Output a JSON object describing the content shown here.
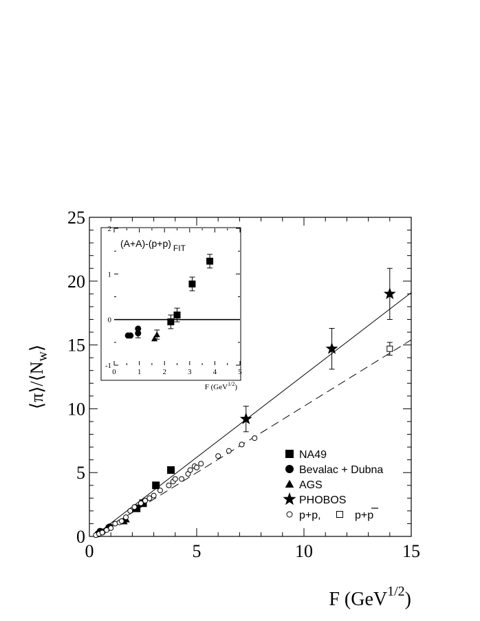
{
  "chart_data": {
    "type": "scatter",
    "xlabel": "F (GeV",
    "xlabel_sup": "1/2",
    "xlabel_close": ")",
    "ylabel": "⟨π⟩/⟨N",
    "ylabel_sub": "w",
    "ylabel_close": "⟩",
    "xlim": [
      0,
      15
    ],
    "ylim": [
      0,
      25
    ],
    "xticks": [
      "0",
      "5",
      "10",
      "15"
    ],
    "yticks": [
      "0",
      "5",
      "10",
      "15",
      "20",
      "25"
    ],
    "series": [
      {
        "name": "NA49",
        "marker": "square-filled",
        "points": [
          [
            2.2,
            2.2
          ],
          [
            2.5,
            2.6
          ],
          [
            3.1,
            4.0
          ],
          [
            3.8,
            5.2
          ]
        ]
      },
      {
        "name": "Bevalac + Dubna",
        "marker": "circle-filled",
        "points": [
          [
            0.4,
            0.2
          ],
          [
            0.5,
            0.4
          ],
          [
            0.6,
            0.35
          ],
          [
            0.9,
            0.7
          ],
          [
            0.95,
            0.75
          ]
        ]
      },
      {
        "name": "AGS",
        "marker": "triangle-filled",
        "points": [
          [
            1.6,
            1.2
          ],
          [
            1.7,
            1.35
          ]
        ]
      },
      {
        "name": "PHOBOS",
        "marker": "star",
        "points": [
          [
            7.3,
            9.2,
            1.0
          ],
          [
            11.3,
            14.7,
            1.6
          ],
          [
            14.0,
            19.0,
            2.0
          ]
        ]
      },
      {
        "name": "p+p,",
        "marker": "circle-open",
        "points": [
          [
            0.3,
            0.1
          ],
          [
            0.45,
            0.2
          ],
          [
            0.6,
            0.3
          ],
          [
            0.8,
            0.5
          ],
          [
            1.0,
            0.65
          ],
          [
            1.2,
            1.0
          ],
          [
            1.4,
            1.1
          ],
          [
            1.5,
            1.2
          ],
          [
            1.7,
            1.5
          ],
          [
            1.9,
            2.0
          ],
          [
            2.1,
            2.3
          ],
          [
            2.4,
            2.6
          ],
          [
            2.6,
            2.8
          ],
          [
            2.8,
            3.0
          ],
          [
            3.0,
            3.2
          ],
          [
            3.3,
            3.6
          ],
          [
            3.7,
            4.0
          ],
          [
            3.9,
            4.3
          ],
          [
            4.0,
            4.5
          ],
          [
            4.3,
            4.5
          ],
          [
            4.6,
            4.9
          ],
          [
            4.7,
            5.2
          ],
          [
            4.9,
            5.5
          ],
          [
            5.0,
            5.4
          ],
          [
            5.2,
            5.7
          ],
          [
            6.0,
            6.3
          ],
          [
            6.5,
            6.7
          ],
          [
            7.1,
            7.2
          ],
          [
            7.7,
            7.7
          ]
        ]
      },
      {
        "name": "p+p",
        "marker": "square-open",
        "overbar": true,
        "points": [
          [
            14.0,
            14.7,
            0.5
          ]
        ]
      }
    ],
    "fit_lines": [
      {
        "style": "solid",
        "from": [
          0.2,
          0.0
        ],
        "to": [
          15.0,
          19.1
        ]
      },
      {
        "style": "dashed",
        "from": [
          0.2,
          0.0
        ],
        "to": [
          15.0,
          15.4
        ]
      }
    ],
    "legend_placement": "bottom-right",
    "inset": {
      "title": "(A+A)-(p+p)",
      "title_sub": "FIT",
      "xlabel": "F (GeV",
      "xlabel_sup": "1/2",
      "xlabel_close": ")",
      "xlim": [
        0,
        5
      ],
      "ylim": [
        -1,
        2
      ],
      "xticks": [
        "0",
        "1",
        "2",
        "3",
        "4",
        "5"
      ],
      "yticks": [
        "-1",
        "0",
        "1",
        "2"
      ],
      "zero_line": true,
      "points": [
        {
          "marker": "circle-filled",
          "x": 0.55,
          "y": -0.35
        },
        {
          "marker": "circle-filled",
          "x": 0.65,
          "y": -0.35
        },
        {
          "marker": "circle-filled",
          "x": 0.95,
          "y": -0.2
        },
        {
          "marker": "circle-filled",
          "x": 0.95,
          "y": -0.3,
          "err": 0.1
        },
        {
          "marker": "triangle-filled",
          "x": 1.6,
          "y": -0.42
        },
        {
          "marker": "triangle-filled",
          "x": 1.7,
          "y": -0.33,
          "err": 0.1
        },
        {
          "marker": "square-filled",
          "x": 2.25,
          "y": -0.05,
          "err": 0.15
        },
        {
          "marker": "square-filled",
          "x": 2.5,
          "y": 0.1,
          "err": 0.15
        },
        {
          "marker": "square-filled",
          "x": 3.1,
          "y": 0.78,
          "err": 0.15
        },
        {
          "marker": "square-filled",
          "x": 3.8,
          "y": 1.28,
          "err": 0.15
        }
      ]
    }
  }
}
